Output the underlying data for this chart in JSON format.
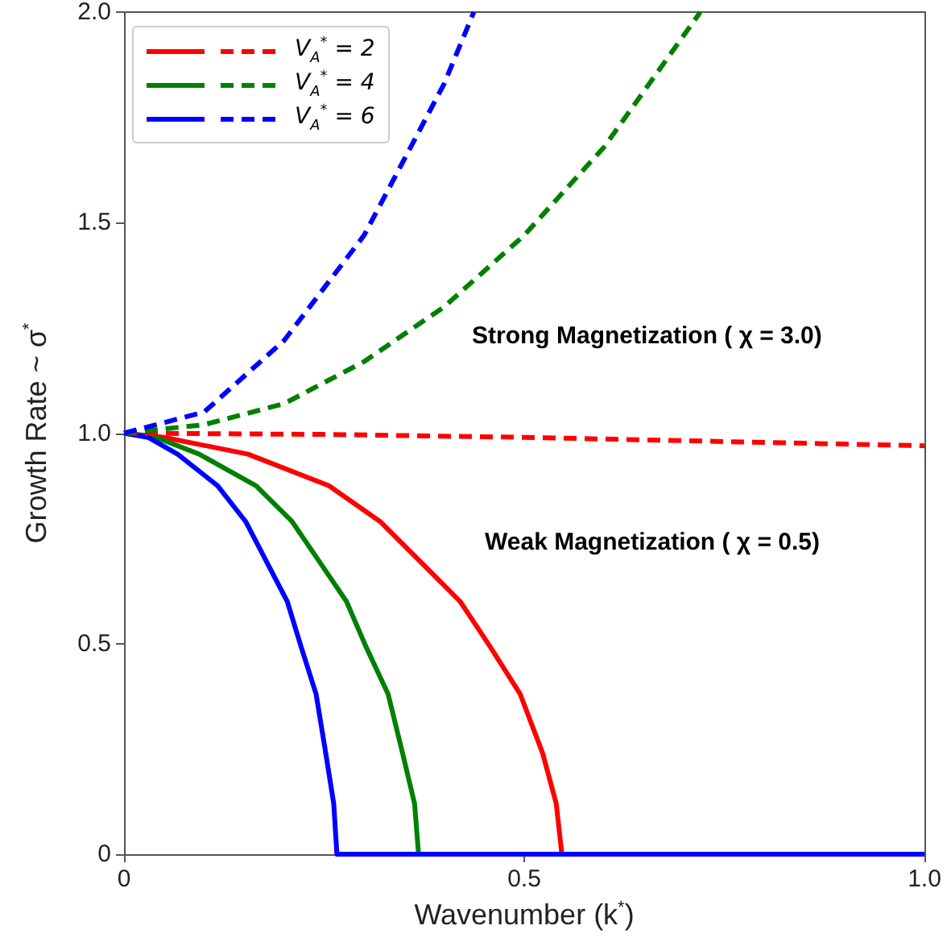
{
  "chart_data": {
    "type": "line",
    "xlabel": "Wavenumber (k$^{*}$)",
    "ylabel": "Growth Rate ~ σ$^{*}$",
    "xlim": [
      0,
      1
    ],
    "xticks": [
      0,
      0.5,
      {
        "value": 1,
        "label": "1.0"
      }
    ],
    "ylim": [
      0,
      2
    ],
    "yticks": [
      0,
      0.5,
      {
        "value": 1,
        "label": "1.0"
      },
      1.5,
      {
        "value": 2,
        "label": "2.0"
      }
    ],
    "grid": false,
    "legend": "top left",
    "marker": "none",
    "annotations": [
      "Strong Magnetization ( χ = 3.0)",
      "Weak Magnetization ( χ = 0.5)"
    ],
    "series": [
      {
        "color": "#ff0000",
        "line_style": "solid",
        "x": [
          0,
          0.05,
          0.155,
          0.256,
          0.32,
          0.376,
          0.42,
          0.457,
          0.495,
          0.523,
          0.54,
          0.547,
          1
        ],
        "values": [
          1,
          0.99,
          0.95,
          0.875,
          0.79,
          0.684,
          0.6,
          0.494,
          0.38,
          0.24,
          0.12,
          0,
          0
        ]
      },
      {
        "color": "#008000",
        "line_style": "solid",
        "x": [
          0,
          0.04,
          0.094,
          0.165,
          0.21,
          0.248,
          0.278,
          0.302,
          0.33,
          0.348,
          0.363,
          0.368,
          1
        ],
        "values": [
          1,
          0.99,
          0.95,
          0.875,
          0.79,
          0.684,
          0.6,
          0.494,
          0.38,
          0.24,
          0.12,
          0,
          0
        ]
      },
      {
        "color": "#0000ff",
        "line_style": "solid",
        "x": [
          0,
          0.03,
          0.067,
          0.117,
          0.152,
          0.181,
          0.204,
          0.221,
          0.24,
          0.252,
          0.262,
          0.266,
          1
        ],
        "values": [
          1,
          0.99,
          0.95,
          0.875,
          0.79,
          0.684,
          0.6,
          0.494,
          0.38,
          0.24,
          0.12,
          0,
          0
        ]
      },
      {
        "name": "V$_{A}$$^{*}$ = 2",
        "color": "#ff0000",
        "line_style": "dashed",
        "x": [
          0,
          0.25,
          0.5,
          0.75,
          1
        ],
        "values": [
          1,
          0.997,
          0.99,
          0.98,
          0.97
        ]
      },
      {
        "name": "V$_{A}$$^{*}$ = 4",
        "color": "#008000",
        "line_style": "dashed",
        "x": [
          0,
          0.1,
          0.2,
          0.3,
          0.4,
          0.5,
          0.6,
          0.72
        ],
        "values": [
          1,
          1.02,
          1.07,
          1.17,
          1.3,
          1.47,
          1.68,
          2
        ]
      },
      {
        "name": "V$_{A}$$^{*}$ = 6",
        "color": "#0000ff",
        "line_style": "dashed",
        "x": [
          0,
          0.1,
          0.2,
          0.3,
          0.4,
          0.437
        ],
        "values": [
          1,
          1.05,
          1.22,
          1.47,
          1.83,
          2
        ]
      }
    ]
  }
}
